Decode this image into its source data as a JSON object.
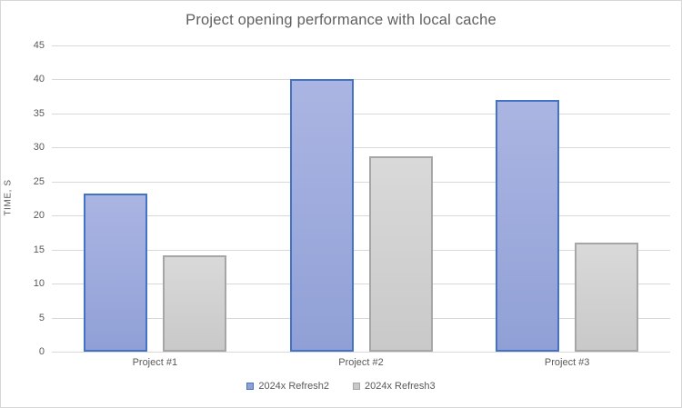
{
  "chart_data": {
    "type": "bar",
    "title": "Project opening performance with local cache",
    "xlabel": "",
    "ylabel": "TIME, S",
    "categories": [
      "Project #1",
      "Project #2",
      "Project #3"
    ],
    "series": [
      {
        "name": "2024x Refresh2",
        "values": [
          23.2,
          40,
          37
        ],
        "fill_top": "#abb5e2",
        "fill_bottom": "#90a0d6",
        "border": "#4472c4"
      },
      {
        "name": "2024x Refresh3",
        "values": [
          14.2,
          28.7,
          16
        ],
        "fill_top": "#d9d9d9",
        "fill_bottom": "#c9c9c9",
        "border": "#a6a6a6"
      }
    ],
    "ylim": [
      0,
      45
    ],
    "ytick_step": 5,
    "grid": true,
    "legend_position": "bottom",
    "colors": {
      "text": "#595959",
      "title_text": "#5f5f5f",
      "gridline": "#d9d9d9",
      "background": "#ffffff",
      "frame_border": "#d7d7d7"
    }
  }
}
